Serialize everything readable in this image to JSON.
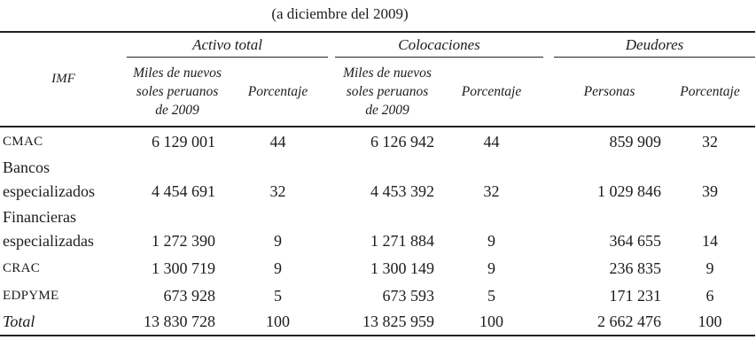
{
  "title": "(a diciembre del 2009)",
  "table": {
    "imf_header": "IMF",
    "groups": [
      {
        "label": "Activo total",
        "col1": "Miles de nuevos soles peruanos de 2009",
        "col2": "Porcentaje"
      },
      {
        "label": "Colocaciones",
        "col1": "Miles de nuevos soles peruanos de 2009",
        "col2": "Porcentaje"
      },
      {
        "label": "Deudores",
        "col1": "Personas",
        "col2": "Porcentaje"
      }
    ],
    "rows": [
      {
        "label": "CMAC",
        "activo_miles": "6 129 001",
        "activo_pct": "44",
        "coloc_miles": "6 126 942",
        "coloc_pct": "44",
        "personas": "859 909",
        "deudores_pct": "32"
      },
      {
        "label": "Bancos especializados",
        "activo_miles": "4 454 691",
        "activo_pct": "32",
        "coloc_miles": "4 453 392",
        "coloc_pct": "32",
        "personas": "1 029 846",
        "deudores_pct": "39"
      },
      {
        "label": "Financieras especializadas",
        "activo_miles": "1 272 390",
        "activo_pct": "9",
        "coloc_miles": "1 271 884",
        "coloc_pct": "9",
        "personas": "364 655",
        "deudores_pct": "14"
      },
      {
        "label": "CRAC",
        "activo_miles": "1 300 719",
        "activo_pct": "9",
        "coloc_miles": "1 300 149",
        "coloc_pct": "9",
        "personas": "236 835",
        "deudores_pct": "9"
      },
      {
        "label": "EDPYME",
        "activo_miles": "673 928",
        "activo_pct": "5",
        "coloc_miles": "673 593",
        "coloc_pct": "5",
        "personas": "171 231",
        "deudores_pct": "6"
      },
      {
        "label": "Total",
        "activo_miles": "13 830 728",
        "activo_pct": "100",
        "coloc_miles": "13 825 959",
        "coloc_pct": "100",
        "personas": "2 662 476",
        "deudores_pct": "100"
      }
    ]
  }
}
